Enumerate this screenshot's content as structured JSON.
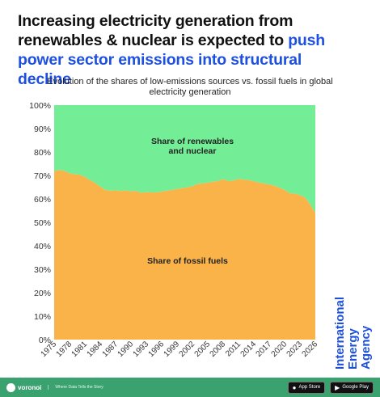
{
  "headline": {
    "part1": "Increasing electricity generation from renewables & nuclear is expected to ",
    "part2": "push power sector emissions into structural decline"
  },
  "org_name": "International Energy Agency",
  "footer": {
    "brand": "voronoi",
    "tagline": "Where Data Tells the Story",
    "appstore_label": "App Store",
    "googleplay_label": "Google Play"
  },
  "colors": {
    "accent": "#1e50e0",
    "fossil": "#f9b348",
    "renewables": "#74ee96",
    "footer": "#3aa26f"
  },
  "chart_data": {
    "type": "area",
    "title": "Evolution of the shares of low-emissions sources vs. fossil fuels in global electricity generation",
    "xlabel": "",
    "ylabel": "",
    "ylim": [
      0,
      100
    ],
    "y_ticks": [
      "0%",
      "10%",
      "20%",
      "30%",
      "40%",
      "50%",
      "60%",
      "70%",
      "80%",
      "90%",
      "100%"
    ],
    "x_ticks": [
      "1975",
      "1978",
      "1981",
      "1984",
      "1987",
      "1990",
      "1993",
      "1996",
      "1999",
      "2002",
      "2005",
      "2008",
      "2011",
      "2014",
      "2017",
      "2020",
      "2023",
      "2026"
    ],
    "stacked": true,
    "grid": false,
    "x": [
      1975,
      1976,
      1977,
      1978,
      1979,
      1980,
      1981,
      1982,
      1983,
      1984,
      1985,
      1986,
      1987,
      1988,
      1989,
      1990,
      1991,
      1992,
      1993,
      1994,
      1995,
      1996,
      1997,
      1998,
      1999,
      2000,
      2001,
      2002,
      2003,
      2004,
      2005,
      2006,
      2007,
      2008,
      2009,
      2010,
      2011,
      2012,
      2013,
      2014,
      2015,
      2016,
      2017,
      2018,
      2019,
      2020,
      2021,
      2022,
      2023,
      2024,
      2025,
      2026
    ],
    "series": [
      {
        "name": "Share of fossil fuels",
        "values": [
          71.8,
          72.3,
          72.0,
          70.8,
          70.5,
          70.3,
          69.3,
          68.0,
          66.8,
          65.2,
          63.8,
          63.5,
          63.6,
          63.3,
          63.6,
          63.2,
          63.4,
          62.6,
          62.9,
          62.7,
          62.8,
          63.1,
          63.5,
          63.8,
          64.2,
          64.6,
          64.9,
          65.4,
          66.4,
          66.6,
          66.9,
          67.3,
          67.6,
          68.4,
          67.6,
          67.8,
          68.5,
          68.2,
          68.0,
          67.5,
          67.0,
          66.5,
          66.2,
          65.6,
          64.8,
          63.8,
          62.4,
          62.2,
          61.6,
          60.5,
          57.6,
          54.0
        ]
      },
      {
        "name": "Share of renewables and nuclear",
        "values": [
          28.2,
          27.7,
          28.0,
          29.2,
          29.5,
          29.7,
          30.7,
          32.0,
          33.2,
          34.8,
          36.2,
          36.5,
          36.4,
          36.7,
          36.4,
          36.8,
          36.6,
          37.4,
          37.1,
          37.3,
          37.2,
          36.9,
          36.5,
          36.2,
          35.8,
          35.4,
          35.1,
          34.6,
          33.6,
          33.4,
          33.1,
          32.7,
          32.4,
          31.6,
          32.4,
          32.2,
          31.5,
          31.8,
          32.0,
          32.5,
          33.0,
          33.5,
          33.8,
          34.4,
          35.2,
          36.2,
          37.6,
          37.8,
          38.4,
          39.5,
          42.4,
          46.0
        ]
      }
    ],
    "annotations": [
      {
        "text_lines": [
          "Share of renewables",
          "and nuclear"
        ],
        "series": "Share of renewables and nuclear"
      },
      {
        "text_lines": [
          "Share of fossil fuels"
        ],
        "series": "Share of fossil fuels"
      }
    ]
  }
}
